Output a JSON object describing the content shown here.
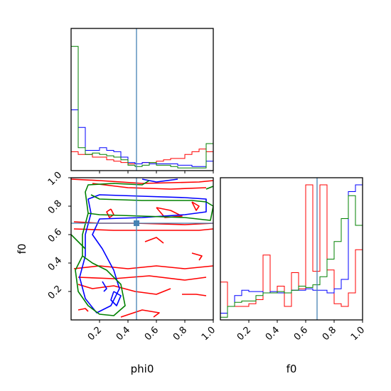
{
  "chart_data": {
    "type": "corner",
    "parameters": [
      "phi0",
      "f0"
    ],
    "axis_labels": {
      "x_bottom_left": "phi0",
      "x_bottom_right": "f0",
      "y_left": "f0"
    },
    "truth": {
      "phi0": 0.46,
      "f0": 0.68
    },
    "truth_color": "#4682b4",
    "ranges": {
      "phi0": [
        0,
        1
      ],
      "f0": [
        0,
        1
      ]
    },
    "ticks": {
      "phi0": {
        "values": [
          0.2,
          0.4,
          0.6,
          0.8,
          1.0
        ],
        "labels": [
          "0.2",
          "0.4",
          "0.6",
          "0.8",
          "1.0"
        ]
      },
      "f0": {
        "values": [
          0.2,
          0.4,
          0.6,
          0.8,
          1.0
        ],
        "labels": [
          "0.2",
          "0.4",
          "0.6",
          "0.8",
          "1.0"
        ]
      }
    },
    "series_colors": [
      "#ff0000",
      "#0000ff",
      "#008000"
    ],
    "hist_phi0": {
      "bins": [
        0,
        0.05,
        0.1,
        0.15,
        0.2,
        0.25,
        0.3,
        0.35,
        0.4,
        0.45,
        0.5,
        0.55,
        0.6,
        0.65,
        0.7,
        0.75,
        0.8,
        0.85,
        0.9,
        0.95,
        1.0
      ],
      "ymax": 1.0,
      "series": [
        {
          "color": "#ff0000",
          "values": [
            0.14,
            0.12,
            0.12,
            0.1,
            0.1,
            0.08,
            0.07,
            0.06,
            0.05,
            0.05,
            0.06,
            0.06,
            0.07,
            0.08,
            0.09,
            0.09,
            0.12,
            0.14,
            0.16,
            0.14
          ]
        },
        {
          "color": "#0000ff",
          "values": [
            0.45,
            0.32,
            0.15,
            0.15,
            0.17,
            0.15,
            0.14,
            0.1,
            0.06,
            0.05,
            0.06,
            0.05,
            0.05,
            0.05,
            0.05,
            0.04,
            0.04,
            0.03,
            0.03,
            0.07
          ]
        },
        {
          "color": "#008000",
          "values": [
            0.92,
            0.17,
            0.12,
            0.13,
            0.12,
            0.11,
            0.1,
            0.08,
            0.04,
            0.03,
            0.04,
            0.06,
            0.04,
            0.04,
            0.03,
            0.02,
            0.02,
            0.02,
            0.02,
            0.2
          ]
        }
      ]
    },
    "hist_f0": {
      "bins": [
        0,
        0.05,
        0.1,
        0.15,
        0.2,
        0.25,
        0.3,
        0.35,
        0.4,
        0.45,
        0.5,
        0.55,
        0.6,
        0.65,
        0.7,
        0.75,
        0.8,
        0.85,
        0.9,
        0.95,
        1.0
      ],
      "ymax": 1.0,
      "series": [
        {
          "color": "#ff0000",
          "values": [
            0.28,
            0.1,
            0.1,
            0.1,
            0.12,
            0.15,
            0.48,
            0.2,
            0.25,
            0.1,
            0.35,
            0.23,
            1.0,
            0.36,
            1.0,
            0.37,
            0.12,
            0.1,
            0.2,
            0.52
          ]
        },
        {
          "color": "#0000ff",
          "values": [
            0.05,
            0.1,
            0.18,
            0.22,
            0.21,
            0.21,
            0.2,
            0.21,
            0.2,
            0.2,
            0.22,
            0.22,
            0.23,
            0.22,
            0.22,
            0.2,
            0.23,
            0.3,
            0.95,
            1.0
          ]
        },
        {
          "color": "#008000",
          "values": [
            0.02,
            0.1,
            0.13,
            0.14,
            0.14,
            0.18,
            0.2,
            0.2,
            0.21,
            0.2,
            0.22,
            0.25,
            0.24,
            0.26,
            0.32,
            0.45,
            0.58,
            0.75,
            0.92,
            0.7
          ]
        }
      ]
    },
    "contours": [
      {
        "color": "#ff0000",
        "paths": [
          [
            [
              0.0,
              0.99
            ],
            [
              0.2,
              0.98
            ],
            [
              0.5,
              0.96
            ],
            [
              0.9,
              0.97
            ],
            [
              1.0,
              0.98
            ]
          ],
          [
            [
              0.15,
              0.96
            ],
            [
              0.4,
              0.93
            ],
            [
              0.7,
              0.92
            ],
            [
              0.95,
              0.93
            ]
          ],
          [
            [
              0.02,
              0.69
            ],
            [
              0.2,
              0.68
            ],
            [
              0.45,
              0.68
            ],
            [
              0.8,
              0.67
            ],
            [
              1.0,
              0.68
            ]
          ],
          [
            [
              0.02,
              0.64
            ],
            [
              0.3,
              0.63
            ],
            [
              0.6,
              0.63
            ],
            [
              0.9,
              0.63
            ],
            [
              1.0,
              0.64
            ]
          ],
          [
            [
              0.28,
              0.78
            ],
            [
              0.3,
              0.74
            ],
            [
              0.27,
              0.72
            ],
            [
              0.25,
              0.76
            ],
            [
              0.28,
              0.78
            ]
          ],
          [
            [
              0.6,
              0.79
            ],
            [
              0.7,
              0.77
            ],
            [
              0.78,
              0.73
            ],
            [
              0.66,
              0.72
            ],
            [
              0.6,
              0.79
            ]
          ],
          [
            [
              0.85,
              0.83
            ],
            [
              0.9,
              0.8
            ],
            [
              0.88,
              0.77
            ],
            [
              0.85,
              0.83
            ]
          ],
          [
            [
              0.02,
              0.36
            ],
            [
              0.2,
              0.38
            ],
            [
              0.4,
              0.36
            ],
            [
              0.6,
              0.38
            ],
            [
              0.8,
              0.36
            ],
            [
              1.0,
              0.38
            ]
          ],
          [
            [
              0.05,
              0.3
            ],
            [
              0.3,
              0.29
            ],
            [
              0.55,
              0.31
            ],
            [
              0.8,
              0.28
            ],
            [
              0.95,
              0.3
            ]
          ],
          [
            [
              0.05,
              0.25
            ],
            [
              0.15,
              0.22
            ],
            [
              0.3,
              0.24
            ],
            [
              0.45,
              0.2
            ],
            [
              0.6,
              0.18
            ],
            [
              0.7,
              0.22
            ]
          ],
          [
            [
              0.35,
              0.02
            ],
            [
              0.5,
              0.07
            ],
            [
              0.62,
              0.05
            ],
            [
              0.58,
              0.02
            ]
          ],
          [
            [
              0.52,
              0.55
            ],
            [
              0.6,
              0.58
            ],
            [
              0.65,
              0.54
            ]
          ],
          [
            [
              0.85,
              0.47
            ],
            [
              0.92,
              0.45
            ],
            [
              0.9,
              0.42
            ]
          ],
          [
            [
              0.78,
              0.18
            ],
            [
              0.88,
              0.18
            ],
            [
              0.95,
              0.17
            ]
          ],
          [
            [
              0.05,
              0.07
            ],
            [
              0.1,
              0.08
            ],
            [
              0.12,
              0.06
            ]
          ]
        ]
      },
      {
        "color": "#0000ff",
        "paths": [
          [
            [
              0.1,
              0.45
            ],
            [
              0.1,
              0.6
            ],
            [
              0.14,
              0.75
            ],
            [
              0.12,
              0.85
            ],
            [
              0.2,
              0.88
            ],
            [
              0.5,
              0.87
            ],
            [
              0.8,
              0.86
            ],
            [
              0.95,
              0.85
            ],
            [
              0.95,
              0.76
            ],
            [
              0.8,
              0.74
            ],
            [
              0.5,
              0.72
            ],
            [
              0.2,
              0.71
            ],
            [
              0.15,
              0.6
            ],
            [
              0.22,
              0.5
            ],
            [
              0.3,
              0.35
            ],
            [
              0.34,
              0.22
            ],
            [
              0.28,
              0.1
            ],
            [
              0.18,
              0.05
            ],
            [
              0.1,
              0.15
            ],
            [
              0.06,
              0.3
            ],
            [
              0.1,
              0.45
            ]
          ],
          [
            [
              0.22,
              0.27
            ],
            [
              0.25,
              0.22
            ],
            [
              0.23,
              0.2
            ]
          ],
          [
            [
              0.3,
              0.2
            ],
            [
              0.35,
              0.17
            ],
            [
              0.32,
              0.1
            ],
            [
              0.28,
              0.14
            ],
            [
              0.3,
              0.2
            ]
          ],
          [
            [
              0.5,
              0.99
            ],
            [
              0.6,
              0.97
            ],
            [
              0.75,
              0.99
            ]
          ]
        ]
      },
      {
        "color": "#008000",
        "paths": [
          [
            [
              0.08,
              0.45
            ],
            [
              0.08,
              0.6
            ],
            [
              0.12,
              0.75
            ],
            [
              0.1,
              0.9
            ],
            [
              0.12,
              0.95
            ],
            [
              0.3,
              0.96
            ],
            [
              0.5,
              0.95
            ],
            [
              0.55,
              0.98
            ]
          ],
          [
            [
              0.12,
              0.75
            ],
            [
              0.2,
              0.74
            ],
            [
              0.5,
              0.73
            ],
            [
              0.8,
              0.72
            ],
            [
              0.98,
              0.7
            ],
            [
              1.0,
              0.8
            ],
            [
              0.95,
              0.83
            ],
            [
              0.85,
              0.84
            ],
            [
              0.5,
              0.84
            ],
            [
              0.2,
              0.85
            ],
            [
              0.14,
              0.88
            ]
          ],
          [
            [
              0.08,
              0.45
            ],
            [
              0.15,
              0.4
            ],
            [
              0.25,
              0.35
            ],
            [
              0.35,
              0.25
            ],
            [
              0.38,
              0.1
            ],
            [
              0.3,
              0.03
            ],
            [
              0.2,
              0.04
            ],
            [
              0.12,
              0.1
            ],
            [
              0.05,
              0.2
            ],
            [
              0.03,
              0.35
            ],
            [
              0.08,
              0.45
            ]
          ],
          [
            [
              0.0,
              0.6
            ],
            [
              0.05,
              0.55
            ],
            [
              0.1,
              0.5
            ]
          ],
          [
            [
              0.95,
              0.92
            ],
            [
              1.0,
              0.94
            ]
          ]
        ]
      }
    ]
  }
}
